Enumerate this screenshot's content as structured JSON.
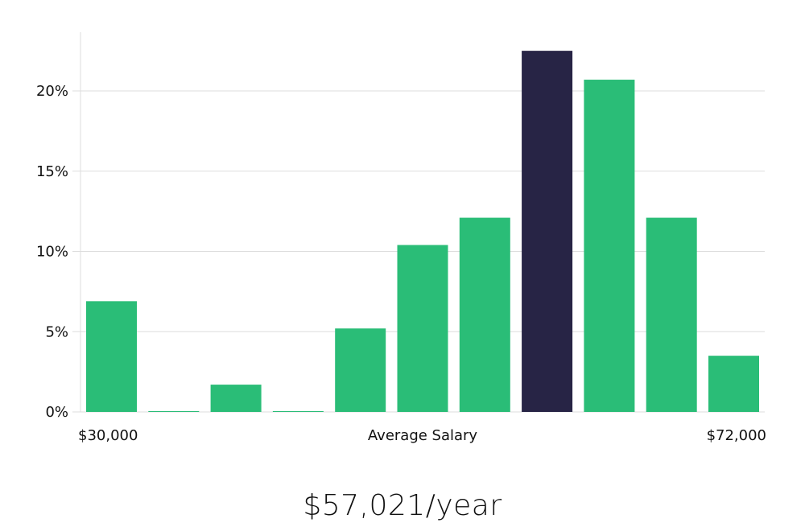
{
  "chart_data": {
    "type": "bar",
    "x_start_label": "$30,000",
    "x_center_label": "Average Salary",
    "x_end_label": "$72,000",
    "values": [
      6.9,
      0.05,
      1.7,
      0.05,
      5.2,
      10.4,
      12.1,
      22.5,
      20.7,
      12.1,
      3.5
    ],
    "highlight_index": 7,
    "y_ticks": [
      "0%",
      "5%",
      "10%",
      "15%",
      "20%"
    ],
    "y_tick_values": [
      0,
      5,
      10,
      15,
      20
    ],
    "ylim": [
      0,
      23.6
    ],
    "grid": true,
    "colors": {
      "bar": "#2abd77",
      "highlight": "#272445",
      "grid": "#dddddd",
      "axis": "#dddddd"
    }
  },
  "summary": {
    "salary": "$57,021/year"
  }
}
